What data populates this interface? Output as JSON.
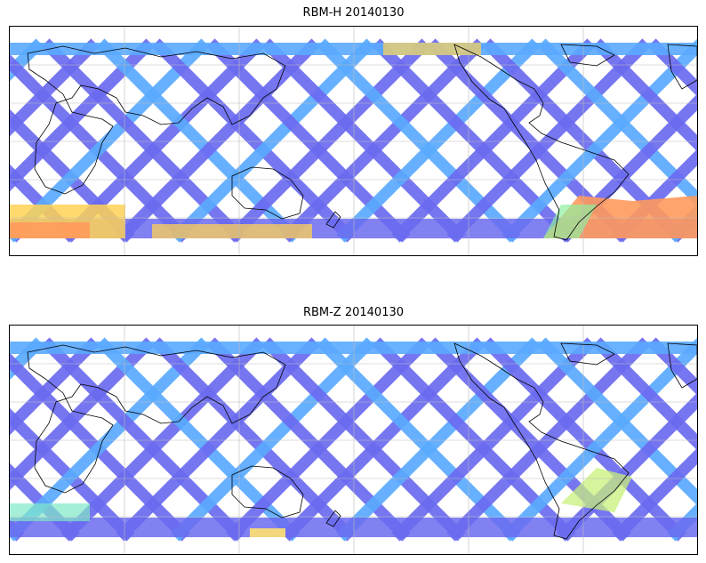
{
  "maps": [
    {
      "title": "RBM-H 20140130",
      "colors": {
        "track": "#6b6bf0",
        "track_light": "#5aaaff",
        "warm_a": "#ff9a5c",
        "warm_b": "#ffd255",
        "mid": "#8ef0a0"
      }
    },
    {
      "title": "RBM-Z 20140130",
      "colors": {
        "track": "#6b6bf0",
        "track_light": "#5aaaff",
        "warm_a": "#ffe070",
        "warm_b": "#c8f07a",
        "mid": "#7fe8c8"
      }
    }
  ],
  "gridlines": true,
  "coastlines": true
}
